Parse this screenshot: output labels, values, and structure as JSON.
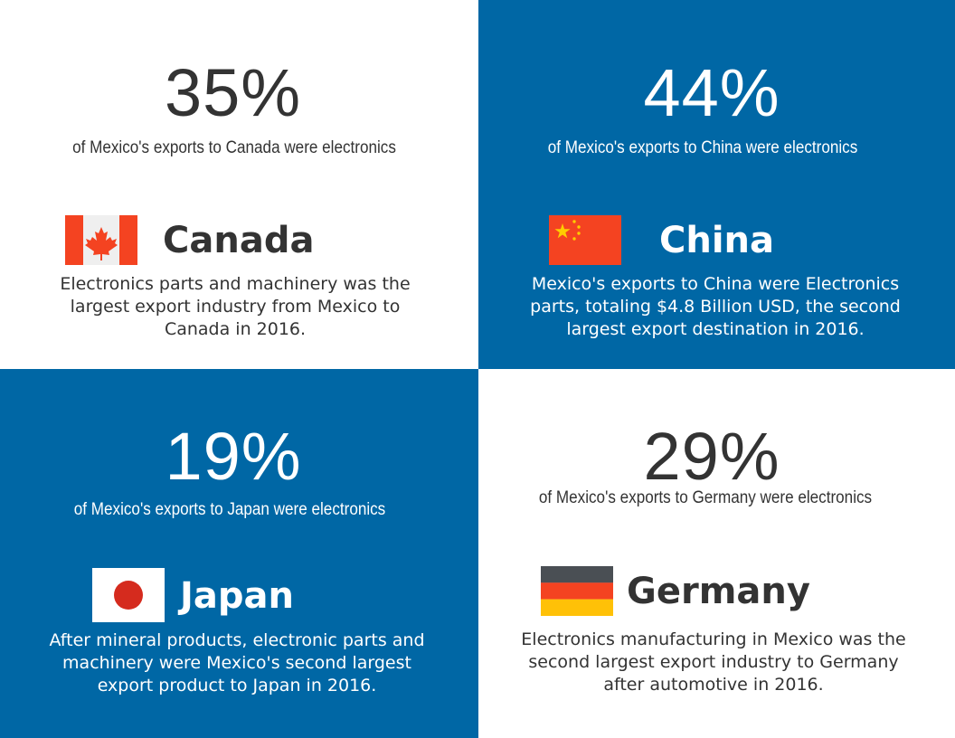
{
  "panels": [
    {
      "percent": "35%",
      "subtitle": "of Mexico's exports to Canada were electronics",
      "country": "Canada",
      "description": "Electronics parts and machinery was the largest export industry from Mexico to Canada in 2016.",
      "flag_icon": "canada-flag-icon",
      "background": "#ffffff"
    },
    {
      "percent": "44%",
      "subtitle": "of Mexico's exports to China were electronics",
      "country": "China",
      "description": "Mexico's exports to China were Electronics parts, totaling $4.8 Billion USD, the second largest export destination in 2016.",
      "flag_icon": "china-flag-icon",
      "background": "#0067a5"
    },
    {
      "percent": "19%",
      "subtitle": "of Mexico's exports to Japan were electronics",
      "country": "Japan",
      "description": "After mineral products, electronic parts and machinery were Mexico's second largest export product to Japan in 2016.",
      "flag_icon": "japan-flag-icon",
      "background": "#0067a5"
    },
    {
      "percent": "29%",
      "subtitle": "of Mexico's exports to Germany were electronics",
      "country": "Germany",
      "description": "Electronics manufacturing in Mexico was the second largest export industry to Germany after automotive in 2016.",
      "flag_icon": "germany-flag-icon",
      "background": "#ffffff"
    }
  ],
  "colors": {
    "blue": "#0067a5",
    "dark_text": "#333333",
    "canada_red": "#f44321",
    "china_red": "#f44321",
    "china_yellow": "#ffcc00",
    "japan_red": "#d52b1e",
    "germany_black": "#4a4f54",
    "germany_red": "#f44321",
    "germany_gold": "#ffc107"
  }
}
